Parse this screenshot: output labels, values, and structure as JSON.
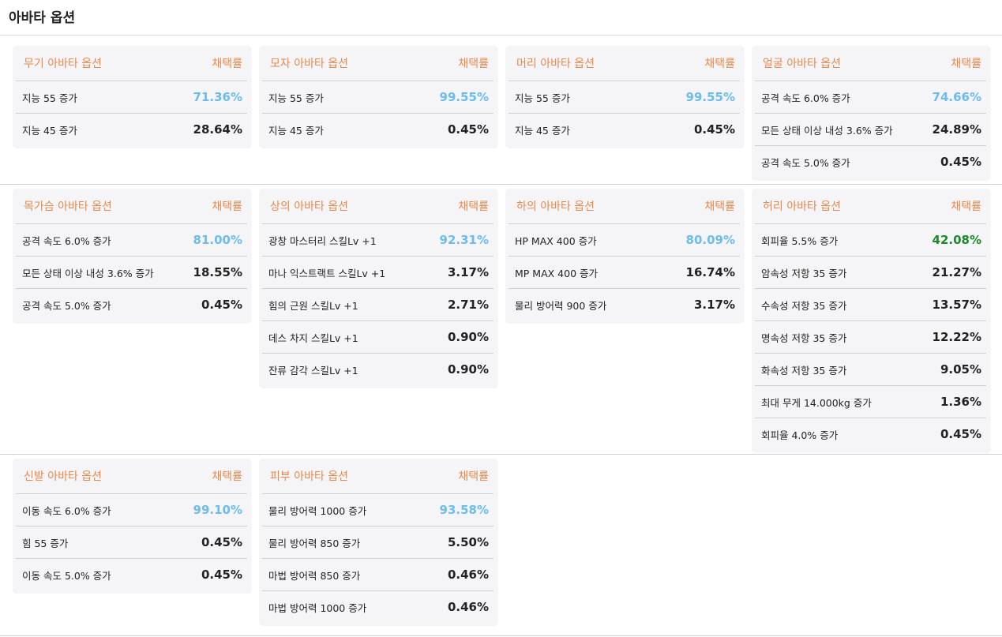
{
  "header": {
    "title": "아바타 옵션"
  },
  "rate_label": "채택률",
  "colors": {
    "accent": "#e8884a",
    "top": "#6cbcef",
    "green": "#1a8a2a",
    "text": "#222222"
  },
  "sections": [
    [
      {
        "title": "무기 아바타 옵션",
        "top_color": "#6cbcef",
        "rows": [
          {
            "label": "지능 55 증가",
            "value": "71.36%"
          },
          {
            "label": "지능 45 증가",
            "value": "28.64%"
          }
        ]
      },
      {
        "title": "모자 아바타 옵션",
        "top_color": "#6cbcef",
        "rows": [
          {
            "label": "지능 55 증가",
            "value": "99.55%"
          },
          {
            "label": "지능 45 증가",
            "value": "0.45%"
          }
        ]
      },
      {
        "title": "머리 아바타 옵션",
        "top_color": "#6cbcef",
        "rows": [
          {
            "label": "지능 55 증가",
            "value": "99.55%"
          },
          {
            "label": "지능 45 증가",
            "value": "0.45%"
          }
        ]
      },
      {
        "title": "얼굴 아바타 옵션",
        "top_color": "#6cbcef",
        "rows": [
          {
            "label": "공격 속도 6.0% 증가",
            "value": "74.66%"
          },
          {
            "label": "모든 상태 이상 내성 3.6% 증가",
            "value": "24.89%"
          },
          {
            "label": "공격 속도 5.0% 증가",
            "value": "0.45%"
          }
        ]
      }
    ],
    [
      {
        "title": "목가슴 아바타 옵션",
        "top_color": "#6cbcef",
        "rows": [
          {
            "label": "공격 속도 6.0% 증가",
            "value": "81.00%"
          },
          {
            "label": "모든 상태 이상 내성 3.6% 증가",
            "value": "18.55%"
          },
          {
            "label": "공격 속도 5.0% 증가",
            "value": "0.45%"
          }
        ]
      },
      {
        "title": "상의 아바타 옵션",
        "top_color": "#6cbcef",
        "rows": [
          {
            "label": "광창 마스터리 스킬Lv +1",
            "value": "92.31%"
          },
          {
            "label": "마나 익스트랙트 스킬Lv +1",
            "value": "3.17%"
          },
          {
            "label": "힘의 근원 스킬Lv +1",
            "value": "2.71%"
          },
          {
            "label": "데스 차지 스킬Lv +1",
            "value": "0.90%"
          },
          {
            "label": "잔류 감각 스킬Lv +1",
            "value": "0.90%"
          }
        ]
      },
      {
        "title": "하의 아바타 옵션",
        "top_color": "#6cbcef",
        "rows": [
          {
            "label": "HP MAX 400 증가",
            "value": "80.09%"
          },
          {
            "label": "MP MAX 400 증가",
            "value": "16.74%"
          },
          {
            "label": "물리 방어력 900 증가",
            "value": "3.17%"
          }
        ]
      },
      {
        "title": "허리 아바타 옵션",
        "top_color": "#1a8a2a",
        "rows": [
          {
            "label": "회피율 5.5% 증가",
            "value": "42.08%"
          },
          {
            "label": "암속성 저항 35 증가",
            "value": "21.27%"
          },
          {
            "label": "수속성 저항 35 증가",
            "value": "13.57%"
          },
          {
            "label": "명속성 저항 35 증가",
            "value": "12.22%"
          },
          {
            "label": "화속성 저항 35 증가",
            "value": "9.05%"
          },
          {
            "label": "최대 무게 14.000kg 증가",
            "value": "1.36%"
          },
          {
            "label": "회피율 4.0% 증가",
            "value": "0.45%"
          }
        ]
      }
    ],
    [
      {
        "title": "신발 아바타 옵션",
        "top_color": "#6cbcef",
        "rows": [
          {
            "label": "이동 속도 6.0% 증가",
            "value": "99.10%"
          },
          {
            "label": "힘 55 증가",
            "value": "0.45%"
          },
          {
            "label": "이동 속도 5.0% 증가",
            "value": "0.45%"
          }
        ]
      },
      {
        "title": "피부 아바타 옵션",
        "top_color": "#6cbcef",
        "rows": [
          {
            "label": "물리 방어력 1000 증가",
            "value": "93.58%"
          },
          {
            "label": "물리 방어력 850 증가",
            "value": "5.50%"
          },
          {
            "label": "마법 방어력 850 증가",
            "value": "0.46%"
          },
          {
            "label": "마법 방어력 1000 증가",
            "value": "0.46%"
          }
        ]
      }
    ]
  ]
}
